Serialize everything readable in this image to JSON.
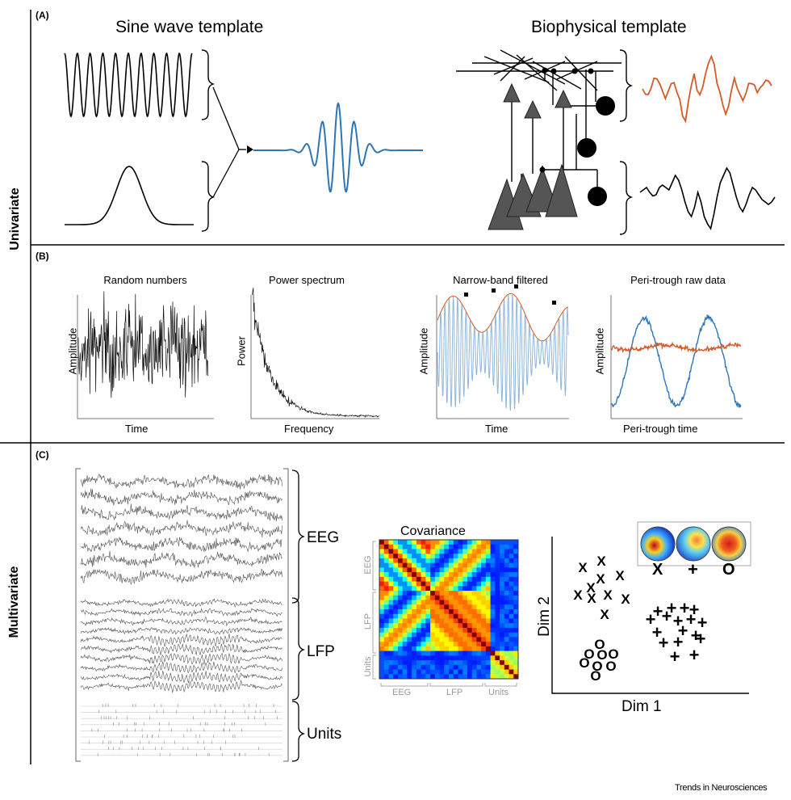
{
  "side_labels": {
    "univariate": "Univariate",
    "multivariate": "Multivariate"
  },
  "panel_a": {
    "label": "(A)",
    "sine_title": "Sine wave template",
    "bio_title": "Biophysical template"
  },
  "panel_b": {
    "label": "(B)",
    "plots": [
      {
        "title": "Random numbers",
        "xlabel": "Time",
        "ylabel": "Amplitude"
      },
      {
        "title": "Power spectrum",
        "xlabel": "Frequency",
        "ylabel": "Power"
      },
      {
        "title": "Narrow-band filtered",
        "xlabel": "Time",
        "ylabel": "Amplitude"
      },
      {
        "title": "Peri-trough raw data",
        "xlabel": "Peri-trough time",
        "ylabel": "Amplitude"
      }
    ]
  },
  "panel_c": {
    "label": "(C)",
    "trace_groups": [
      "EEG",
      "LFP",
      "Units"
    ],
    "covariance": {
      "title": "Covariance",
      "x_labels": [
        "EEG",
        "LFP",
        "Units"
      ],
      "y_labels": [
        "EEG",
        "LFP",
        "Units"
      ]
    },
    "scatter": {
      "xlabel": "Dim 1",
      "ylabel": "Dim 2",
      "classes": [
        "X",
        "+",
        "O"
      ]
    }
  },
  "footer": "Trends in Neurosciences",
  "colors": {
    "blue": "#2e75b6",
    "orange": "#d45a2a",
    "light_blue": "#8fb7dc"
  }
}
